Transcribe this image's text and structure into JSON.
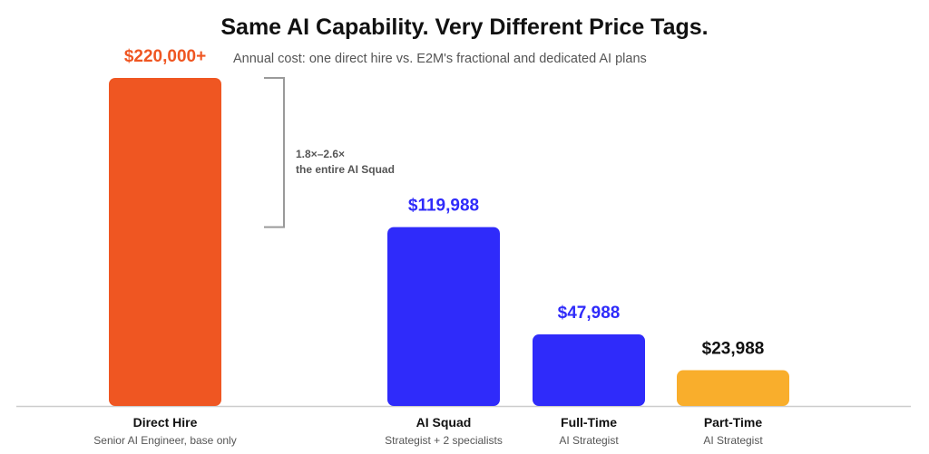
{
  "chart_data": {
    "type": "bar",
    "title": "Same AI Capability. Very Different Price Tags.",
    "subtitle": "Annual cost: one direct hire vs. E2M's fractional and dedicated AI plans",
    "ylim": [
      0,
      220000
    ],
    "grid": false,
    "bars": [
      {
        "category": "Direct Hire",
        "sublabel": "Senior AI Engineer, base only",
        "value": 220000,
        "value_label": "$220,000+",
        "color": "#EF5622",
        "label_color": "#EF5622"
      },
      {
        "category": "AI Squad",
        "sublabel": "Strategist + 2 specialists",
        "value": 119988,
        "value_label": "$119,988",
        "color": "#2F2BFA",
        "label_color": "#2F2BFA"
      },
      {
        "category": "Full-Time",
        "sublabel": "AI Strategist",
        "value": 47988,
        "value_label": "$47,988",
        "color": "#2F2BFA",
        "label_color": "#2F2BFA"
      },
      {
        "category": "Part-Time",
        "sublabel": "AI Strategist",
        "value": 23988,
        "value_label": "$23,988",
        "color": "#F9AE2C",
        "label_color": "#111111"
      }
    ],
    "annotation": {
      "line1": "1.8×–2.6×",
      "line2": "the entire AI Squad"
    }
  }
}
